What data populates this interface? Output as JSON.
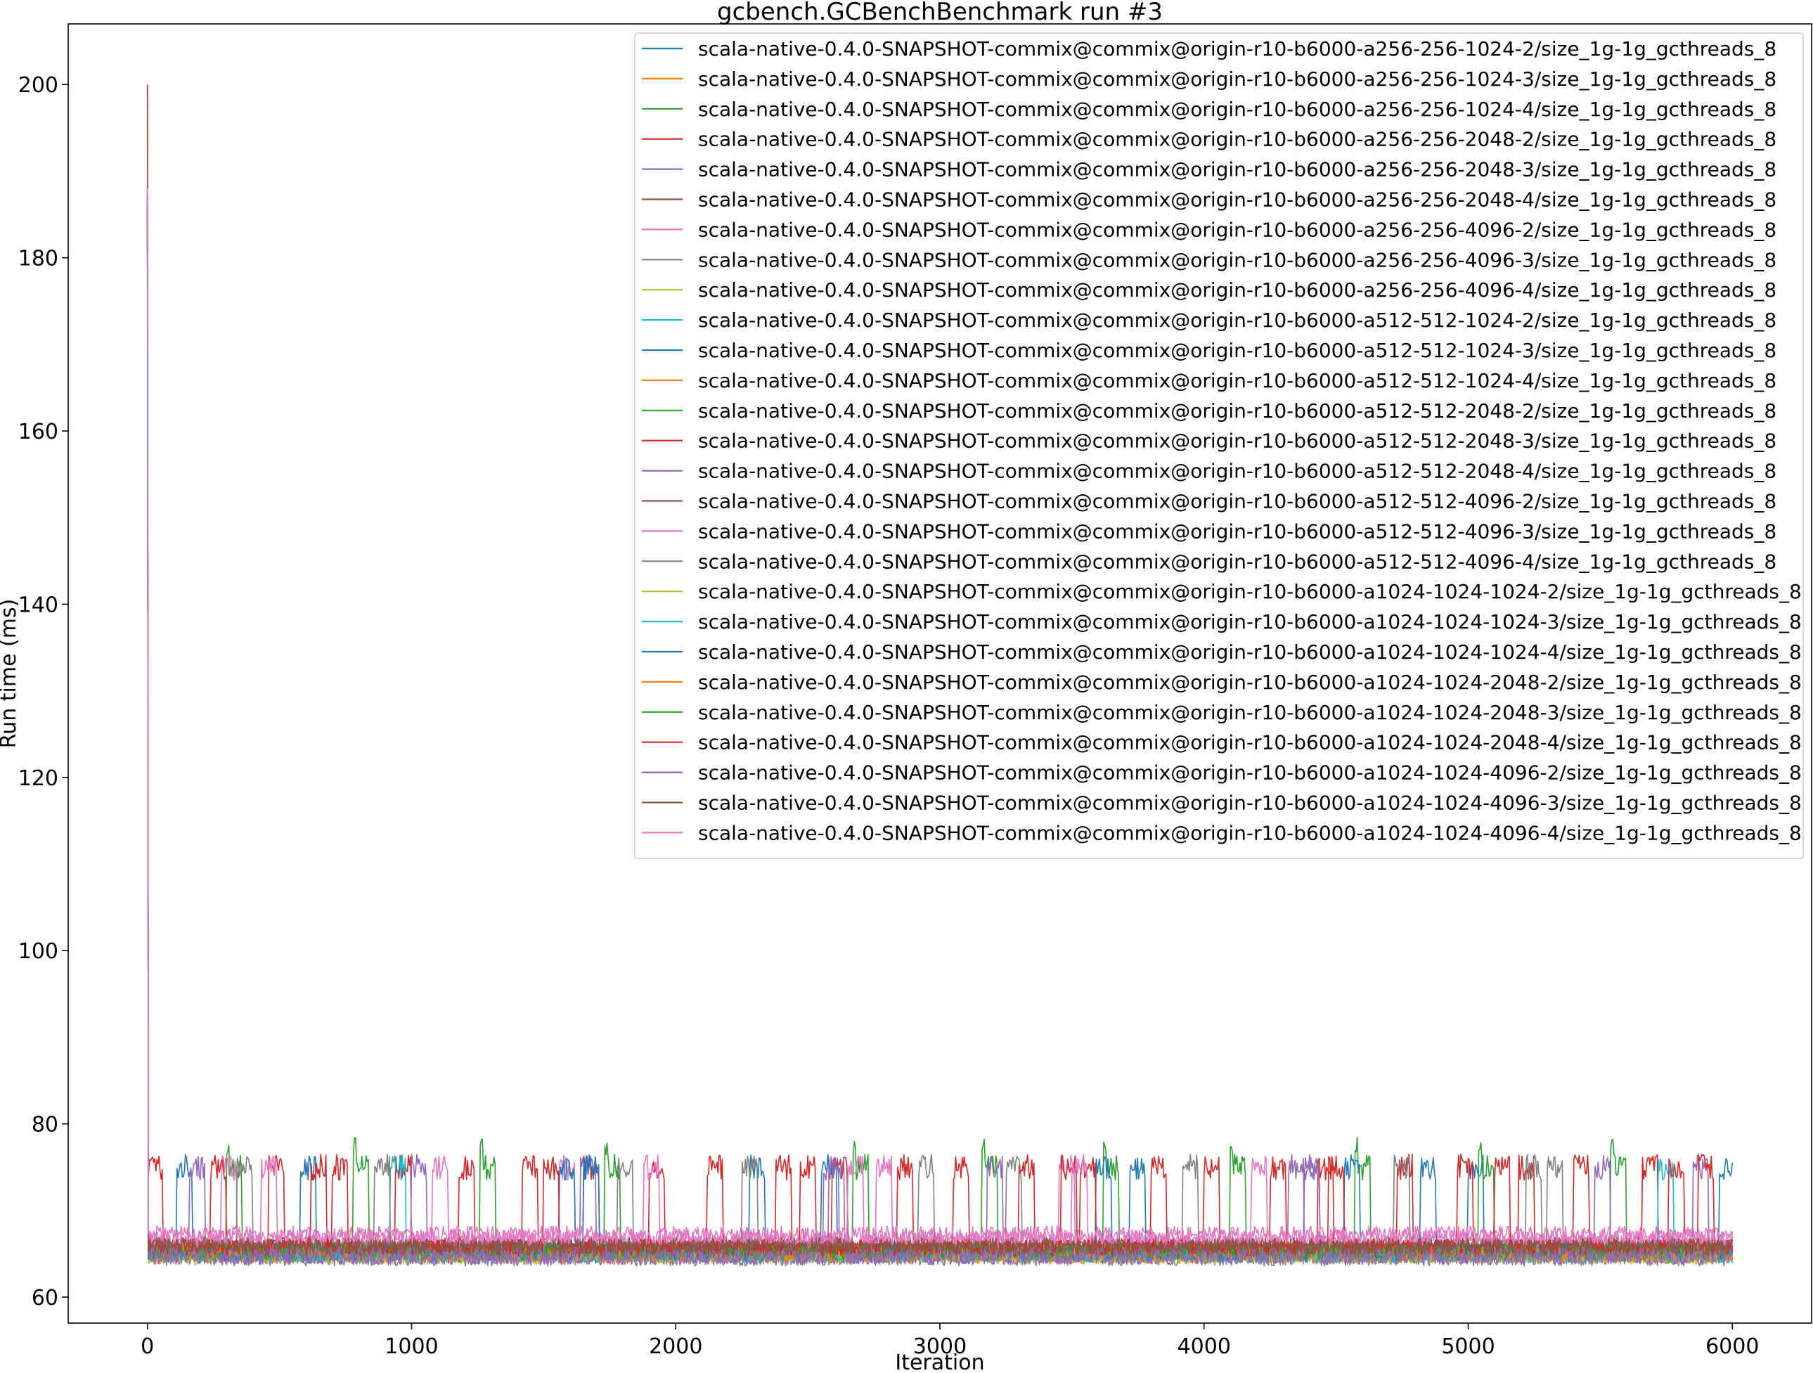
{
  "chart_data": {
    "type": "line",
    "title": "gcbench.GCBenchBenchmark run #3",
    "xlabel": "Iteration",
    "ylabel": "Run time (ms)",
    "xlim": [
      -300,
      6300
    ],
    "ylim": [
      57,
      207
    ],
    "xticks": [
      0,
      1000,
      2000,
      3000,
      4000,
      5000,
      6000
    ],
    "yticks": [
      60,
      80,
      100,
      120,
      140,
      160,
      180,
      200
    ],
    "legend_position": "top-right",
    "n_iterations": 6000,
    "typical_range_ms": [
      64,
      68
    ],
    "spike_band_ms": [
      73,
      76
    ],
    "initial_spike": {
      "series_index": 3,
      "iteration": 0,
      "value": 200
    },
    "series": [
      {
        "name": "scala-native-0.4.0-SNAPSHOT-commix@commix@origin-r10-b6000-a256-256-1024-2/size_1g-1g_gcthreads_8",
        "color": "#1f77b4",
        "baseline": 64.9,
        "spike_starts": [
          110,
          2280,
          5000
        ]
      },
      {
        "name": "scala-native-0.4.0-SNAPSHOT-commix@commix@origin-r10-b6000-a256-256-1024-3/size_1g-1g_gcthreads_8",
        "color": "#ff7f0e",
        "baseline": 65.1,
        "spike_starts": []
      },
      {
        "name": "scala-native-0.4.0-SNAPSHOT-commix@commix@origin-r10-b6000-a256-256-1024-4/size_1g-1g_gcthreads_8",
        "color": "#2ca02c",
        "baseline": 65.0,
        "spike_starts": [
          300,
          780,
          1260,
          1730,
          2670,
          3160,
          3620,
          4100,
          4570,
          5040,
          5540
        ]
      },
      {
        "name": "scala-native-0.4.0-SNAPSHOT-commix@commix@origin-r10-b6000-a256-256-2048-2/size_1g-1g_gcthreads_8",
        "color": "#d62728",
        "baseline": 65.4,
        "spike_starts": [
          460,
          940,
          1420,
          1900,
          2380,
          2840,
          3300,
          3800,
          4250,
          4730,
          5190,
          5660
        ]
      },
      {
        "name": "scala-native-0.4.0-SNAPSHOT-commix@commix@origin-r10-b6000-a256-256-2048-3/size_1g-1g_gcthreads_8",
        "color": "#9467bd",
        "baseline": 64.7,
        "spike_starts": [
          1000,
          2560,
          4380,
          5850
        ]
      },
      {
        "name": "scala-native-0.4.0-SNAPSHOT-commix@commix@origin-r10-b6000-a256-256-2048-4/size_1g-1g_gcthreads_8",
        "color": "#8c564b",
        "baseline": 65.6,
        "spike_starts": []
      },
      {
        "name": "scala-native-0.4.0-SNAPSHOT-commix@commix@origin-r10-b6000-a256-256-4096-2/size_1g-1g_gcthreads_8",
        "color": "#e377c2",
        "baseline": 66.2,
        "spike_starts": [
          280,
          1560,
          2760,
          3450
        ]
      },
      {
        "name": "scala-native-0.4.0-SNAPSHOT-commix@commix@origin-r10-b6000-a256-256-4096-3/size_1g-1g_gcthreads_8",
        "color": "#7f7f7f",
        "baseline": 65.3,
        "spike_starts": [
          340,
          1780,
          2250,
          3250,
          4720,
          5220
        ]
      },
      {
        "name": "scala-native-0.4.0-SNAPSHOT-commix@commix@origin-r10-b6000-a256-256-4096-4/size_1g-1g_gcthreads_8",
        "color": "#bcbd22",
        "baseline": 64.8,
        "spike_starts": []
      },
      {
        "name": "scala-native-0.4.0-SNAPSHOT-commix@commix@origin-r10-b6000-a512-512-1024-2/size_1g-1g_gcthreads_8",
        "color": "#17becf",
        "baseline": 65.0,
        "spike_starts": [
          920,
          5720
        ]
      },
      {
        "name": "scala-native-0.4.0-SNAPSHOT-commix@commix@origin-r10-b6000-a512-512-1024-3/size_1g-1g_gcthreads_8",
        "color": "#1f77b4",
        "baseline": 65.2,
        "spike_starts": [
          580,
          1560,
          2550,
          3590,
          4530,
          5950
        ]
      },
      {
        "name": "scala-native-0.4.0-SNAPSHOT-commix@commix@origin-r10-b6000-a512-512-1024-4/size_1g-1g_gcthreads_8",
        "color": "#ff7f0e",
        "baseline": 64.9,
        "spike_starts": []
      },
      {
        "name": "scala-native-0.4.0-SNAPSHOT-commix@commix@origin-r10-b6000-a512-512-2048-2/size_1g-1g_gcthreads_8",
        "color": "#2ca02c",
        "baseline": 65.5,
        "spike_starts": []
      },
      {
        "name": "scala-native-0.4.0-SNAPSHOT-commix@commix@origin-r10-b6000-a512-512-2048-3/size_1g-1g_gcthreads_8",
        "color": "#d62728",
        "baseline": 65.6,
        "spike_starts": [
          0,
          240,
          700,
          1180,
          1650,
          2120,
          2590,
          3050,
          3530,
          4000,
          4470,
          4960,
          5400,
          5870
        ]
      },
      {
        "name": "scala-native-0.4.0-SNAPSHOT-commix@commix@origin-r10-b6000-a512-512-2048-4/size_1g-1g_gcthreads_8",
        "color": "#9467bd",
        "baseline": 64.6,
        "spike_starts": [
          160,
          1640,
          3180,
          4320,
          5480
        ]
      },
      {
        "name": "scala-native-0.4.0-SNAPSHOT-commix@commix@origin-r10-b6000-a512-512-4096-2/size_1g-1g_gcthreads_8",
        "color": "#8c564b",
        "baseline": 65.8,
        "spike_starts": []
      },
      {
        "name": "scala-native-0.4.0-SNAPSHOT-commix@commix@origin-r10-b6000-a512-512-4096-3/size_1g-1g_gcthreads_8",
        "color": "#e377c2",
        "baseline": 66.8,
        "spike_starts": [
          1080,
          2650,
          4180
        ]
      },
      {
        "name": "scala-native-0.4.0-SNAPSHOT-commix@commix@origin-r10-b6000-a512-512-4096-4/size_1g-1g_gcthreads_8",
        "color": "#7f7f7f",
        "baseline": 65.1,
        "spike_starts": [
          860,
          2920,
          3920,
          5300
        ]
      },
      {
        "name": "scala-native-0.4.0-SNAPSHOT-commix@commix@origin-r10-b6000-a1024-1024-1024-2/size_1g-1g_gcthreads_8",
        "color": "#bcbd22",
        "baseline": 64.9,
        "spike_starts": []
      },
      {
        "name": "scala-native-0.4.0-SNAPSHOT-commix@commix@origin-r10-b6000-a1024-1024-1024-3/size_1g-1g_gcthreads_8",
        "color": "#17becf",
        "baseline": 65.0,
        "spike_starts": []
      },
      {
        "name": "scala-native-0.4.0-SNAPSHOT-commix@commix@origin-r10-b6000-a1024-1024-1024-4/size_1g-1g_gcthreads_8",
        "color": "#1f77b4",
        "baseline": 65.2,
        "spike_starts": [
          1650,
          3720,
          4820
        ]
      },
      {
        "name": "scala-native-0.4.0-SNAPSHOT-commix@commix@origin-r10-b6000-a1024-1024-2048-2/size_1g-1g_gcthreads_8",
        "color": "#ff7f0e",
        "baseline": 65.1,
        "spike_starts": []
      },
      {
        "name": "scala-native-0.4.0-SNAPSHOT-commix@commix@origin-r10-b6000-a1024-1024-2048-3/size_1g-1g_gcthreads_8",
        "color": "#2ca02c",
        "baseline": 65.3,
        "spike_starts": []
      },
      {
        "name": "scala-native-0.4.0-SNAPSHOT-commix@commix@origin-r10-b6000-a1024-1024-2048-4/size_1g-1g_gcthreads_8",
        "color": "#d62728",
        "baseline": 65.7,
        "spike_starts": [
          620,
          1500,
          2470,
          3460,
          4430,
          5100,
          5760
        ]
      },
      {
        "name": "scala-native-0.4.0-SNAPSHOT-commix@commix@origin-r10-b6000-a1024-1024-4096-2/size_1g-1g_gcthreads_8",
        "color": "#9467bd",
        "baseline": 64.8,
        "spike_starts": [
          2580,
          4380
        ]
      },
      {
        "name": "scala-native-0.4.0-SNAPSHOT-commix@commix@origin-r10-b6000-a1024-1024-4096-3/size_1g-1g_gcthreads_8",
        "color": "#8c564b",
        "baseline": 65.9,
        "spike_starts": []
      },
      {
        "name": "scala-native-0.4.0-SNAPSHOT-commix@commix@origin-r10-b6000-a1024-1024-4096-4/size_1g-1g_gcthreads_8",
        "color": "#e377c2",
        "baseline": 67.2,
        "spike_starts": [
          430,
          1880,
          3500
        ]
      }
    ]
  }
}
